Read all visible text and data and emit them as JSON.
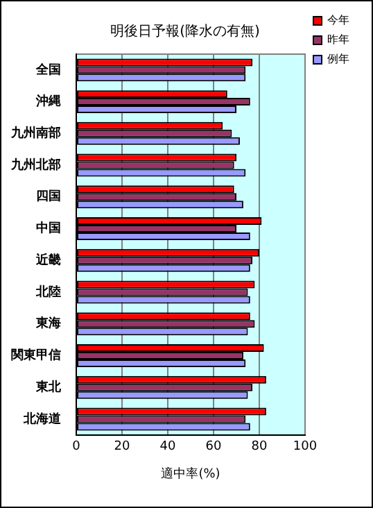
{
  "chart_data": {
    "type": "bar",
    "orientation": "horizontal",
    "title": "明後日予報(降水の有無)",
    "xlabel": "適中率(%)",
    "categories": [
      "全国",
      "沖縄",
      "九州南部",
      "九州北部",
      "四国",
      "中国",
      "近畿",
      "北陸",
      "東海",
      "関東甲信",
      "東北",
      "北海道"
    ],
    "series": [
      {
        "name": "今年",
        "color": "#ff0000",
        "values": [
          77,
          66,
          64,
          70,
          69,
          81,
          80,
          78,
          76,
          82,
          83,
          83
        ]
      },
      {
        "name": "昨年",
        "color": "#993366",
        "values": [
          74,
          76,
          68,
          69,
          70,
          70,
          77,
          75,
          78,
          73,
          77,
          74
        ]
      },
      {
        "name": "例年",
        "color": "#9999ff",
        "values": [
          74,
          70,
          71.5,
          74,
          73,
          76,
          76,
          76,
          75,
          74,
          75,
          76
        ]
      }
    ],
    "xlim": [
      0,
      100
    ],
    "xticks": [
      0,
      20,
      40,
      60,
      80,
      100
    ],
    "grid": "x",
    "legend": "top right"
  }
}
